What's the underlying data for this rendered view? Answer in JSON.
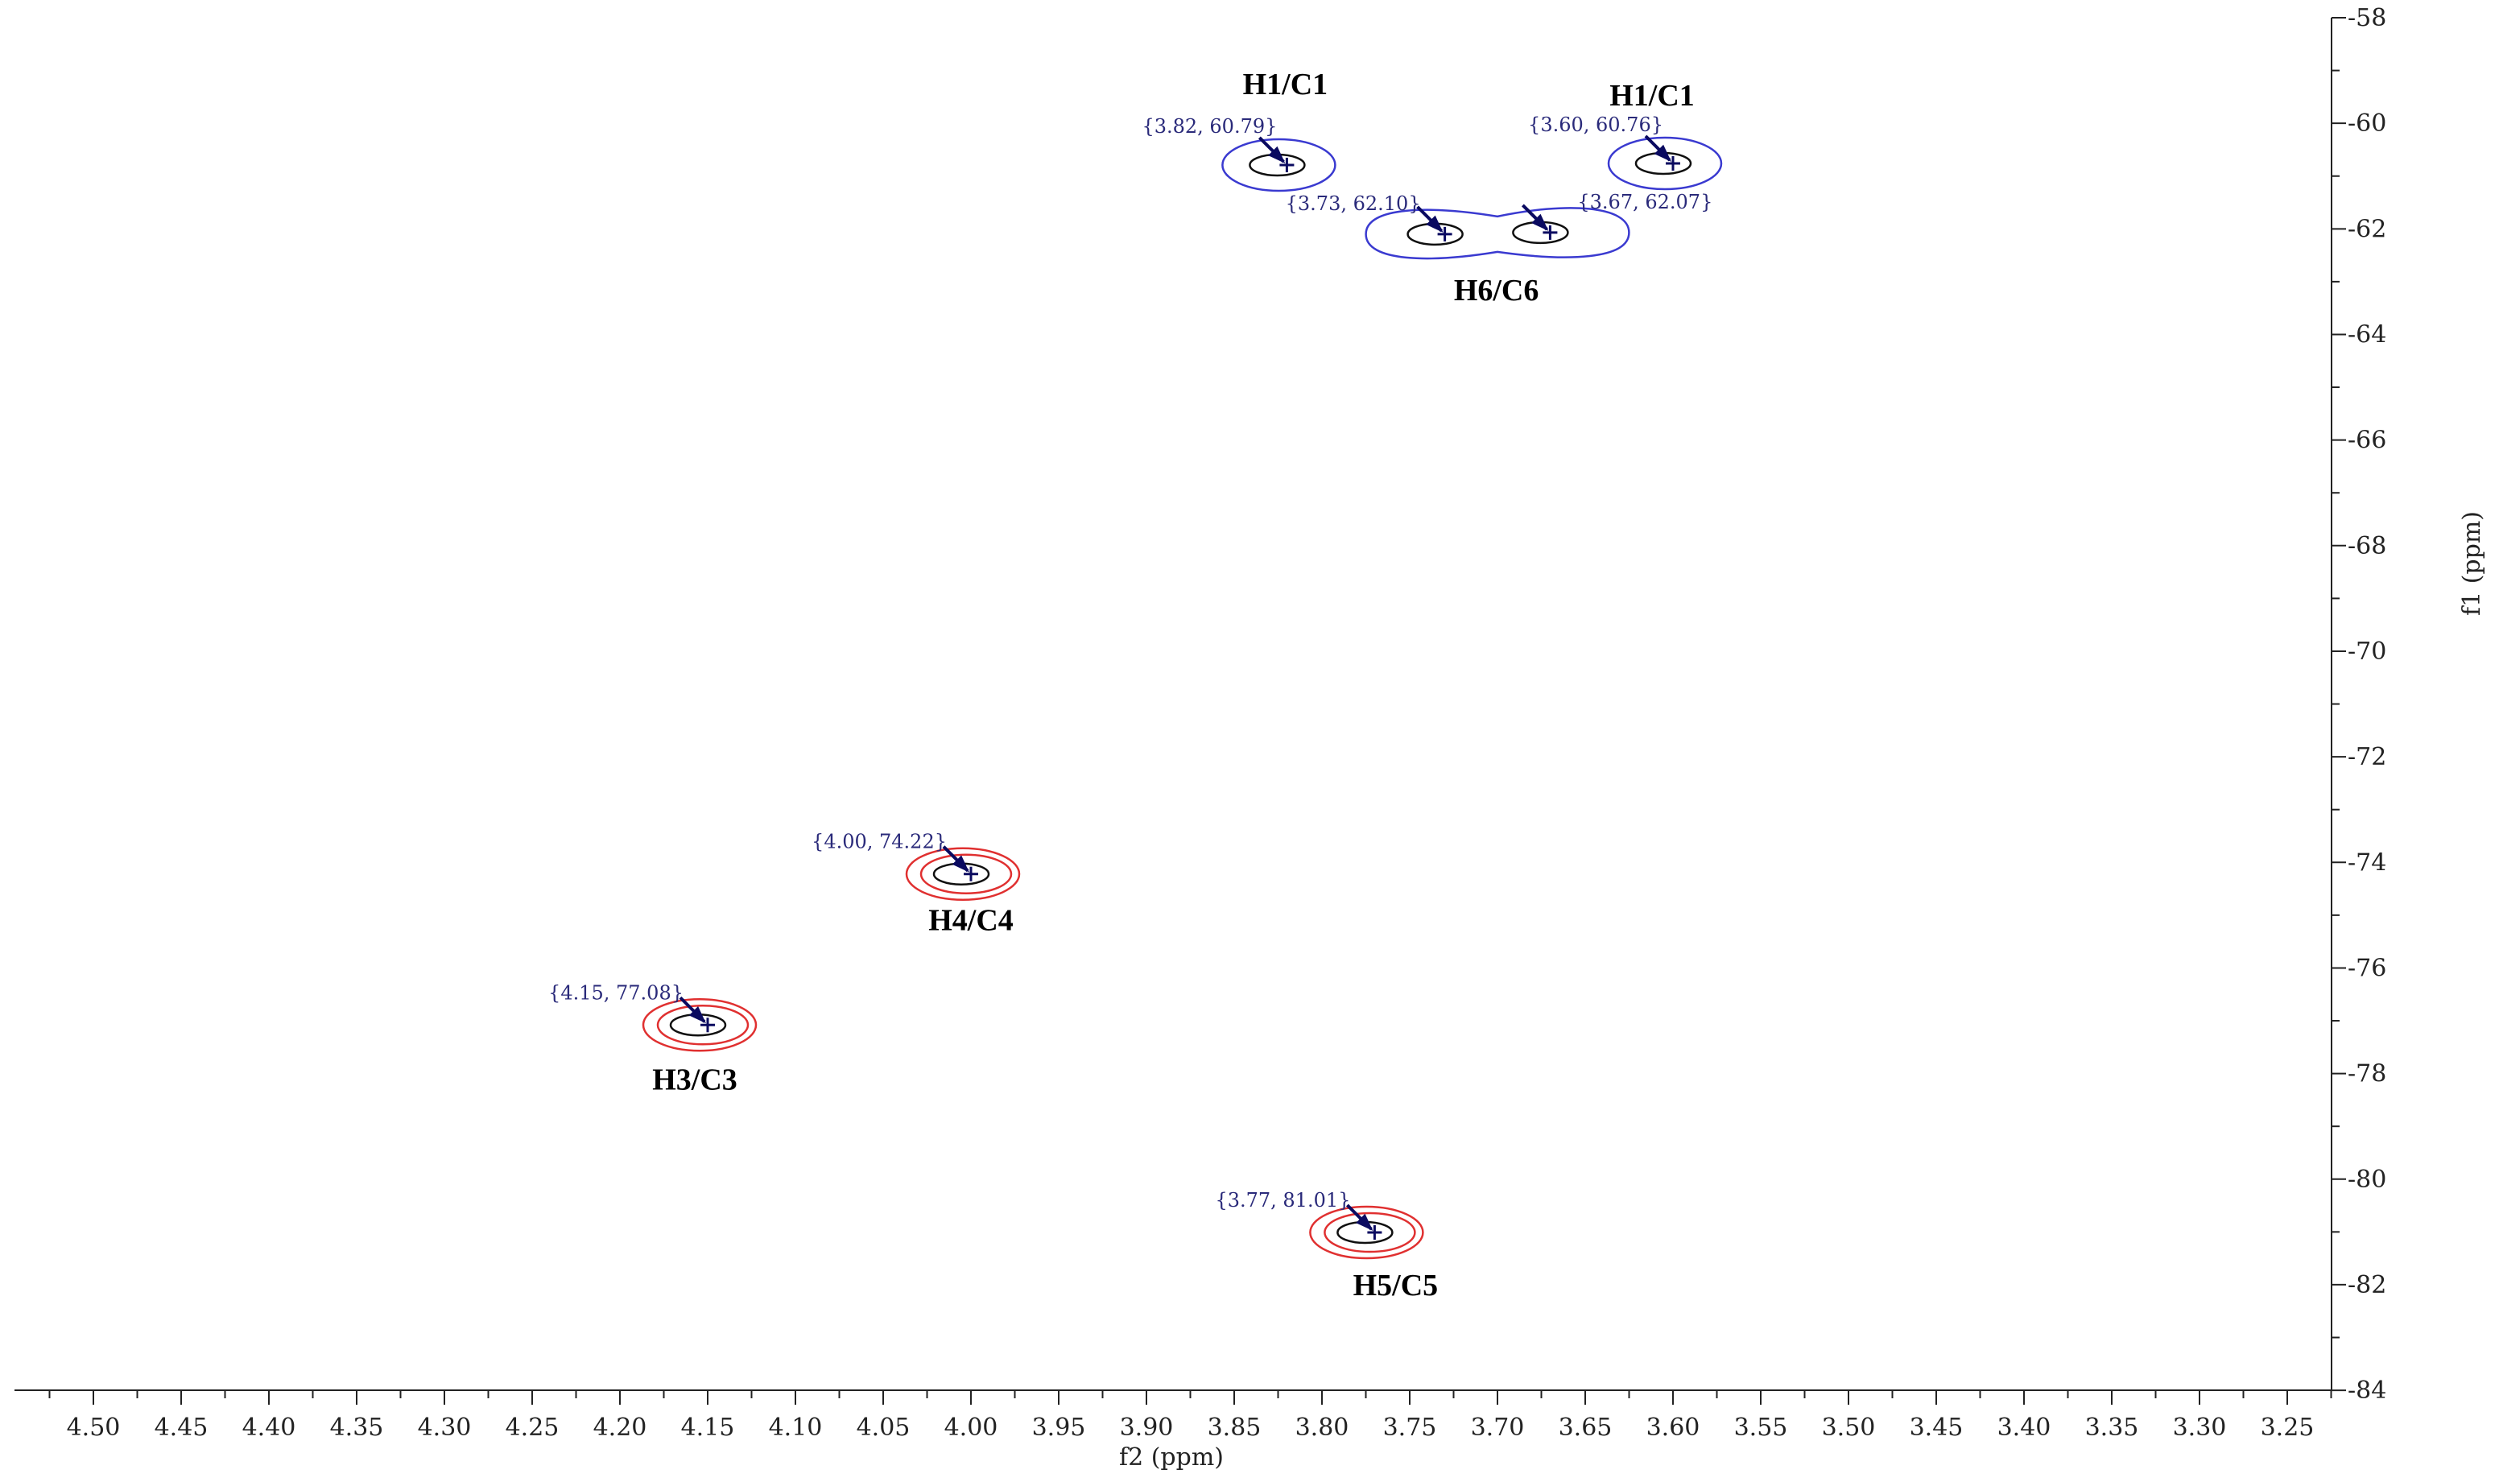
{
  "chart_data": {
    "type": "scatter",
    "title": "",
    "xlabel": "f2 (ppm)",
    "ylabel": "f1 (ppm)",
    "xlim": [
      4.545,
      3.22
    ],
    "ylim": [
      58,
      84
    ],
    "x_ticks": [
      "4.50",
      "4.45",
      "4.40",
      "4.35",
      "4.30",
      "4.25",
      "4.20",
      "4.15",
      "4.10",
      "4.05",
      "4.00",
      "3.95",
      "3.90",
      "3.85",
      "3.80",
      "3.75",
      "3.70",
      "3.65",
      "3.60",
      "3.55",
      "3.50",
      "3.45",
      "3.40",
      "3.35",
      "3.30",
      "3.25"
    ],
    "y_ticks": [
      "-58",
      "-60",
      "-62",
      "-64",
      "-66",
      "-68",
      "-70",
      "-72",
      "-74",
      "-76",
      "-78",
      "-80",
      "-82",
      "-84"
    ],
    "colors": {
      "positive_contour": "#3a3ad0",
      "negative_contour": "#e03030",
      "inner_contour": "#101010",
      "marker": "#0a0a60"
    },
    "peaks": [
      {
        "x": 3.82,
        "y": 60.79,
        "coord_text": "{3.82, 60.79}",
        "label": "H1/C1",
        "phase": "positive"
      },
      {
        "x": 3.6,
        "y": 60.76,
        "coord_text": "{3.60, 60.76}",
        "label": "H1/C1",
        "phase": "positive"
      },
      {
        "x": 3.73,
        "y": 62.1,
        "coord_text": "{3.73, 62.10}",
        "label": "H6/C6",
        "phase": "positive"
      },
      {
        "x": 3.67,
        "y": 62.07,
        "coord_text": "{3.67, 62.07}",
        "label": "",
        "phase": "positive"
      },
      {
        "x": 4.0,
        "y": 74.22,
        "coord_text": "{4.00, 74.22}",
        "label": "H4/C4",
        "phase": "negative"
      },
      {
        "x": 4.15,
        "y": 77.08,
        "coord_text": "{4.15, 77.08}",
        "label": "H3/C3",
        "phase": "negative"
      },
      {
        "x": 3.77,
        "y": 81.01,
        "coord_text": "{3.77, 81.01}",
        "label": "H5/C5",
        "phase": "negative"
      }
    ]
  }
}
